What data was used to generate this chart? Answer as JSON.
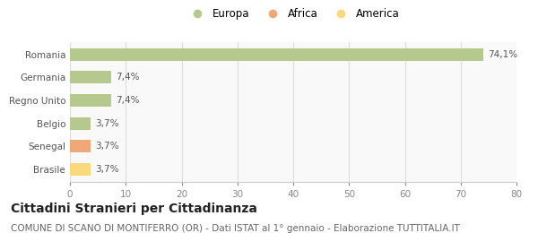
{
  "categories": [
    "Brasile",
    "Senegal",
    "Belgio",
    "Regno Unito",
    "Germania",
    "Romania"
  ],
  "values": [
    3.7,
    3.7,
    3.7,
    7.4,
    7.4,
    74.1
  ],
  "labels": [
    "3,7%",
    "3,7%",
    "3,7%",
    "7,4%",
    "7,4%",
    "74,1%"
  ],
  "colors": [
    "#f9d97c",
    "#f0a878",
    "#b5c98e",
    "#b5c98e",
    "#b5c98e",
    "#b5c98e"
  ],
  "legend": [
    {
      "label": "Europa",
      "color": "#b5c98e"
    },
    {
      "label": "Africa",
      "color": "#f0a878"
    },
    {
      "label": "America",
      "color": "#f9d97c"
    }
  ],
  "xlim": [
    0,
    80
  ],
  "xticks": [
    0,
    10,
    20,
    30,
    40,
    50,
    60,
    70,
    80
  ],
  "title": "Cittadini Stranieri per Cittadinanza",
  "subtitle": "COMUNE DI SCANO DI MONTIFERRO (OR) - Dati ISTAT al 1° gennaio - Elaborazione TUTTITALIA.IT",
  "background_color": "#ffffff",
  "plot_bg_color": "#f9f9f9",
  "title_fontsize": 10,
  "subtitle_fontsize": 7.5,
  "label_fontsize": 7.5,
  "tick_fontsize": 7.5,
  "legend_fontsize": 8.5
}
